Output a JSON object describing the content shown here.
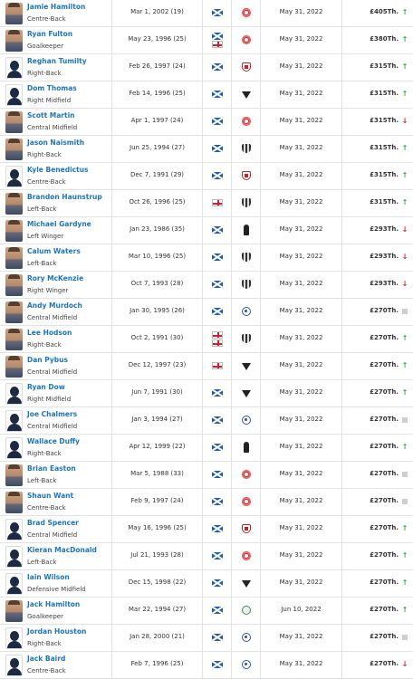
{
  "players": [
    {
      "name": "Jamie Hamilton",
      "position": "Centre-Back",
      "dob": "Mar 1, 2002 (19)",
      "nationality": [
        "scotland"
      ],
      "club": "red-round",
      "contract": "May 31, 2022",
      "value": "£405Th.",
      "trend": "up",
      "avatar": "photo"
    },
    {
      "name": "Ryan Fulton",
      "position": "Goalkeeper",
      "dob": "May 23, 1996 (25)",
      "nationality": [
        "scotland",
        "england"
      ],
      "club": "red-round",
      "contract": "May 31, 2022",
      "value": "£380Th.",
      "trend": "up",
      "avatar": "photo"
    },
    {
      "name": "Reghan Tumilty",
      "position": "Right-Back",
      "dob": "Feb 26, 1997 (24)",
      "nationality": [
        "scotland"
      ],
      "club": "shield-red",
      "contract": "May 31, 2022",
      "value": "£315Th.",
      "trend": "up",
      "avatar": "silhouette"
    },
    {
      "name": "Dom Thomas",
      "position": "Right Midfield",
      "dob": "Feb 14, 1996 (25)",
      "nationality": [
        "scotland"
      ],
      "club": "dark-tri",
      "contract": "May 31, 2022",
      "value": "£315Th.",
      "trend": "up",
      "avatar": "silhouette"
    },
    {
      "name": "Scott Martin",
      "position": "Central Midfield",
      "dob": "Apr 1, 1997 (24)",
      "nationality": [
        "scotland"
      ],
      "club": "red-round",
      "contract": "May 31, 2022",
      "value": "£315Th.",
      "trend": "down",
      "avatar": "photo"
    },
    {
      "name": "Jason Naismith",
      "position": "Right-Back",
      "dob": "Jun 25, 1994 (27)",
      "nationality": [
        "scotland"
      ],
      "club": "shield-stripe",
      "contract": "May 31, 2022",
      "value": "£315Th.",
      "trend": "up",
      "avatar": "photo"
    },
    {
      "name": "Kyle Benedictus",
      "position": "Centre-Back",
      "dob": "Dec 7, 1991 (29)",
      "nationality": [
        "scotland"
      ],
      "club": "shield-red",
      "contract": "May 31, 2022",
      "value": "£315Th.",
      "trend": "up",
      "avatar": "silhouette"
    },
    {
      "name": "Brandon Haunstrup",
      "position": "Left-Back",
      "dob": "Oct 26, 1996 (25)",
      "nationality": [
        "england"
      ],
      "club": "shield-stripe",
      "contract": "May 31, 2022",
      "value": "£315Th.",
      "trend": "up",
      "avatar": "photo"
    },
    {
      "name": "Michael Gardyne",
      "position": "Left Winger",
      "dob": "Jan 23, 1986 (35)",
      "nationality": [
        "scotland"
      ],
      "club": "tall-dark",
      "contract": "May 31, 2022",
      "value": "£293Th.",
      "trend": "down",
      "avatar": "photo"
    },
    {
      "name": "Calum Waters",
      "position": "Left-Back",
      "dob": "Mar 10, 1996 (25)",
      "nationality": [
        "scotland"
      ],
      "club": "shield-stripe",
      "contract": "May 31, 2022",
      "value": "£293Th.",
      "trend": "down",
      "avatar": "photo"
    },
    {
      "name": "Rory McKenzie",
      "position": "Right Winger",
      "dob": "Oct 7, 1993 (28)",
      "nationality": [
        "scotland"
      ],
      "club": "shield-stripe",
      "contract": "May 31, 2022",
      "value": "£293Th.",
      "trend": "down",
      "avatar": "photo"
    },
    {
      "name": "Andy Murdoch",
      "position": "Central Midfield",
      "dob": "Jan 30, 1995 (26)",
      "nationality": [
        "scotland"
      ],
      "club": "blue-round",
      "contract": "May 31, 2022",
      "value": "£270Th.",
      "trend": "same",
      "avatar": "photo"
    },
    {
      "name": "Lee Hodson",
      "position": "Right-Back",
      "dob": "Oct 2, 1991 (30)",
      "nationality": [
        "england",
        "england"
      ],
      "club": "shield-stripe",
      "contract": "May 31, 2022",
      "value": "£270Th.",
      "trend": "up",
      "avatar": "photo"
    },
    {
      "name": "Dan Pybus",
      "position": "Central Midfield",
      "dob": "Dec 12, 1997 (23)",
      "nationality": [
        "england"
      ],
      "club": "dark-tri",
      "contract": "May 31, 2022",
      "value": "£270Th.",
      "trend": "up",
      "avatar": "photo"
    },
    {
      "name": "Ryan Dow",
      "position": "Right Midfield",
      "dob": "Jun 7, 1991 (30)",
      "nationality": [
        "scotland"
      ],
      "club": "dark-tri",
      "contract": "May 31, 2022",
      "value": "£270Th.",
      "trend": "up",
      "avatar": "silhouette"
    },
    {
      "name": "Joe Chalmers",
      "position": "Central Midfield",
      "dob": "Jan 3, 1994 (27)",
      "nationality": [
        "scotland"
      ],
      "club": "blue-round",
      "contract": "May 31, 2022",
      "value": "£270Th.",
      "trend": "same",
      "avatar": "silhouette"
    },
    {
      "name": "Wallace Duffy",
      "position": "Right-Back",
      "dob": "Apr 12, 1999 (22)",
      "nationality": [
        "scotland"
      ],
      "club": "tall-dark",
      "contract": "May 31, 2022",
      "value": "£270Th.",
      "trend": "up",
      "avatar": "silhouette"
    },
    {
      "name": "Brian Easton",
      "position": "Left-Back",
      "dob": "Mar 5, 1988 (33)",
      "nationality": [
        "scotland"
      ],
      "club": "red-round",
      "contract": "May 31, 2022",
      "value": "£270Th.",
      "trend": "same",
      "avatar": "photo"
    },
    {
      "name": "Shaun Want",
      "position": "Centre-Back",
      "dob": "Feb 9, 1997 (24)",
      "nationality": [
        "scotland"
      ],
      "club": "red-round",
      "contract": "May 31, 2022",
      "value": "£270Th.",
      "trend": "same",
      "avatar": "photo"
    },
    {
      "name": "Brad Spencer",
      "position": "Central Midfield",
      "dob": "May 16, 1996 (25)",
      "nationality": [
        "scotland"
      ],
      "club": "shield-red",
      "contract": "May 31, 2022",
      "value": "£270Th.",
      "trend": "up",
      "avatar": "silhouette"
    },
    {
      "name": "Kieran MacDonald",
      "position": "Left-Back",
      "dob": "Jul 21, 1993 (28)",
      "nationality": [
        "scotland"
      ],
      "club": "red-round",
      "contract": "May 31, 2022",
      "value": "£270Th.",
      "trend": "up",
      "avatar": "silhouette"
    },
    {
      "name": "Iain Wilson",
      "position": "Defensive Midfield",
      "dob": "Dec 15, 1998 (22)",
      "nationality": [
        "scotland"
      ],
      "club": "dark-tri",
      "contract": "May 31, 2022",
      "value": "£270Th.",
      "trend": "up",
      "avatar": "silhouette"
    },
    {
      "name": "Jack Hamilton",
      "position": "Goalkeeper",
      "dob": "Mar 22, 1994 (27)",
      "nationality": [
        "scotland"
      ],
      "club": "green-round",
      "contract": "Jun 10, 2022",
      "value": "£270Th.",
      "trend": "up",
      "avatar": "photo"
    },
    {
      "name": "Jordan Houston",
      "position": "Right-Back",
      "dob": "Jan 28, 2000 (21)",
      "nationality": [
        "scotland"
      ],
      "club": "blue-round",
      "contract": "May 31, 2022",
      "value": "£270Th.",
      "trend": "same",
      "avatar": "silhouette"
    },
    {
      "name": "Jack Baird",
      "position": "Centre-Back",
      "dob": "Feb 7, 1996 (25)",
      "nationality": [
        "scotland"
      ],
      "club": "blue-round",
      "contract": "May 31, 2022",
      "value": "£270Th.",
      "trend": "down",
      "avatar": "silhouette"
    }
  ],
  "colors": {
    "link": "#1d75bc",
    "up": "#2bb43b",
    "down": "#d4242b",
    "border": "#e3e3e3"
  },
  "icons": {
    "up": "arrow-up-icon",
    "down": "arrow-down-icon",
    "same": "no-change-icon"
  }
}
